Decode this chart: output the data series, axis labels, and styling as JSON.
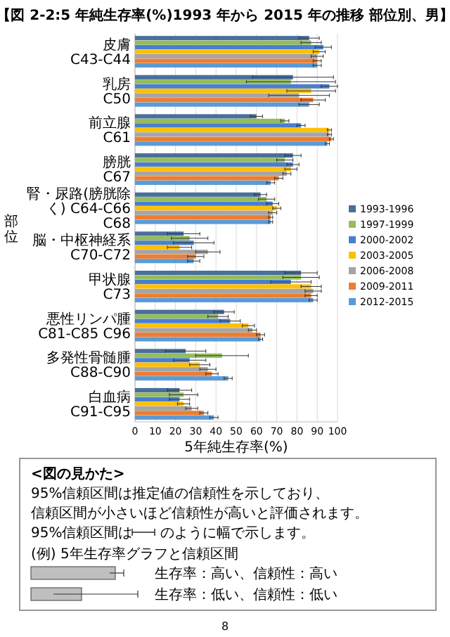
{
  "chart_data": {
    "type": "bar",
    "orientation": "horizontal",
    "title": "【図 2-2:5 年純生存率(%)1993 年から 2015 年の推移 部位別、男】",
    "xlabel": "5年純生存率(%)",
    "ylabel": "部位",
    "categories": [
      "皮膚 C43-C44",
      "乳房 C50",
      "前立腺 C61",
      "膀胱 C67",
      "腎・尿路(膀胱除く) C64-C66 C68",
      "脳・中枢神経系 C70-C72",
      "甲状腺 C73",
      "悪性リンパ腫 C81-C85 C96",
      "多発性骨髄腫 C88-C90",
      "白血病 C91-C95"
    ],
    "series": [
      {
        "name": "1993-1996",
        "color": "#4a6f9c",
        "values": [
          86,
          78,
          60,
          78,
          62,
          24,
          82,
          44,
          25,
          22
        ],
        "errors": [
          5,
          20,
          3,
          4,
          3,
          8,
          8,
          5,
          10,
          6
        ]
      },
      {
        "name": "1997-1999",
        "color": "#94bd5c",
        "values": [
          87,
          77,
          74,
          74,
          65,
          27,
          82,
          41,
          43,
          24
        ],
        "errors": [
          5,
          22,
          2,
          4,
          4,
          9,
          9,
          5,
          13,
          7
        ]
      },
      {
        "name": "2000-2002",
        "color": "#4a7fd0",
        "values": [
          93,
          96,
          82,
          78,
          68,
          29,
          77,
          47,
          27,
          22
        ],
        "errors": [
          4,
          4,
          2,
          3,
          3,
          10,
          10,
          5,
          8,
          5
        ]
      },
      {
        "name": "2003-2005",
        "color": "#ffc000",
        "values": [
          91,
          87,
          96,
          77,
          70,
          22,
          87,
          56,
          32,
          24
        ],
        "errors": [
          3,
          12,
          1,
          3,
          2,
          6,
          5,
          3,
          5,
          3
        ]
      },
      {
        "name": "2006-2008",
        "color": "#a5a5a5",
        "values": [
          90,
          81,
          96,
          75,
          68,
          36,
          88,
          58,
          36,
          28
        ],
        "errors": [
          3,
          15,
          1,
          2,
          2,
          6,
          4,
          2,
          4,
          3
        ]
      },
      {
        "name": "2009-2011",
        "color": "#ed7d31",
        "values": [
          90,
          88,
          97,
          71,
          67,
          30,
          87,
          62,
          38,
          34
        ],
        "errors": [
          2,
          6,
          1,
          2,
          1,
          4,
          3,
          2,
          3,
          2
        ]
      },
      {
        "name": "2012-2015",
        "color": "#5b9bd5",
        "values": [
          90,
          86,
          95,
          67,
          67,
          29,
          88,
          62,
          46,
          39
        ],
        "errors": [
          2,
          5,
          1,
          2,
          1,
          3,
          2,
          1,
          2,
          2
        ]
      }
    ],
    "xlim": [
      0,
      100
    ],
    "xticks": [
      0,
      10,
      20,
      30,
      40,
      50,
      60,
      70,
      80,
      90,
      100
    ],
    "grid": "x",
    "legend": "right",
    "annotations": [
      "<図の見かた>",
      "95%信頼区間は推定値の信頼性を示しており、",
      "信頼区間が小さいほど信頼性が高いと評価されます。",
      "95%信頼区間は",
      "のように幅で示します。",
      "(例) 5年生存率グラフと信頼区間",
      "生存率：高い、信頼性：高い",
      "生存率：低い、信頼性：低い",
      "8"
    ]
  }
}
